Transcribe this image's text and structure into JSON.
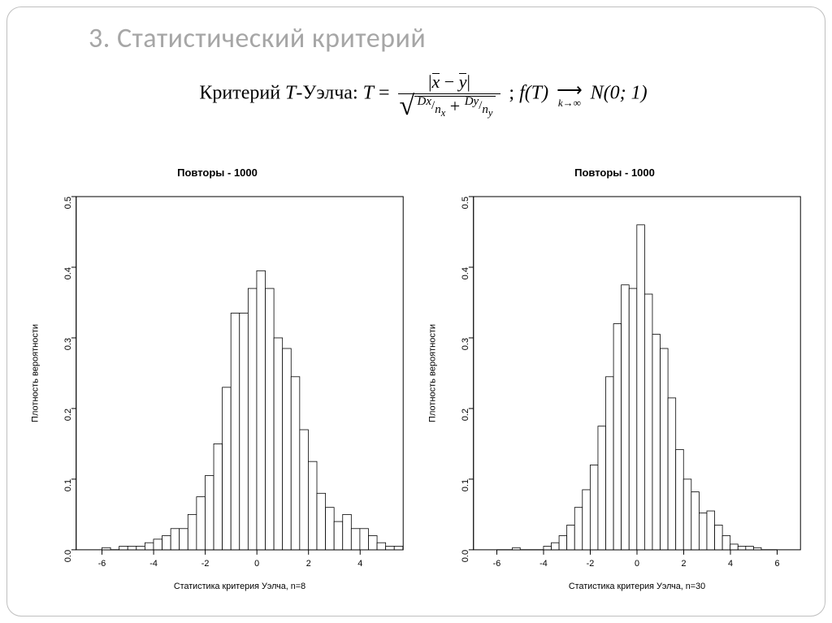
{
  "title": "3. Статистический критерий",
  "formula": {
    "label_prefix": "Критерий ",
    "label_tword": "T",
    "label_suffix": "-Уэлча: ",
    "lhs": "T",
    "num_abs_left": "x",
    "num_abs_right": "y",
    "den_dx": "Dx",
    "den_nx": "n",
    "den_nx_sub": "x",
    "den_dy": "Dy",
    "den_ny": "n",
    "den_ny_sub": "y",
    "f_of_t": "f(T)",
    "arrow_sub": "k→∞",
    "normal": "N(0; 1)"
  },
  "chart_common": {
    "type": "histogram",
    "title": "Повторы - 1000",
    "title_fontsize": 13,
    "title_fontweight": "bold",
    "ylabel": "Плотность вероятности",
    "label_fontsize": 11,
    "tick_fontsize": 11,
    "ylim": [
      0,
      0.5
    ],
    "ytick_step": 0.1,
    "yticks": [
      0.0,
      0.1,
      0.2,
      0.3,
      0.4,
      0.5
    ],
    "bar_fill": "#ffffff",
    "bar_stroke": "#000000",
    "axis_color": "#000000",
    "background_color": "#ffffff",
    "bin_width": 0.333
  },
  "chart_left": {
    "xlabel": "Статистика критерия Уэлча, n=8",
    "xlim": [
      -7,
      5.667
    ],
    "xticks": [
      -6,
      -4,
      -2,
      0,
      2,
      4
    ],
    "bin_start": -7,
    "values": [
      0,
      0,
      0,
      0.003,
      0,
      0.005,
      0.005,
      0.005,
      0.01,
      0.015,
      0.02,
      0.03,
      0.03,
      0.05,
      0.075,
      0.105,
      0.15,
      0.23,
      0.335,
      0.335,
      0.37,
      0.395,
      0.37,
      0.3,
      0.285,
      0.245,
      0.17,
      0.125,
      0.08,
      0.06,
      0.04,
      0.05,
      0.03,
      0.03,
      0.02,
      0.01,
      0.005,
      0.005
    ]
  },
  "chart_right": {
    "xlabel": "Статистика критерия Уэлча, n=30",
    "xlim": [
      -7,
      7
    ],
    "xticks": [
      -6,
      -4,
      -2,
      0,
      2,
      4,
      6
    ],
    "bin_start": -5.667,
    "values": [
      0,
      0.003,
      0,
      0,
      0,
      0.005,
      0.01,
      0.02,
      0.035,
      0.06,
      0.085,
      0.12,
      0.175,
      0.245,
      0.32,
      0.375,
      0.37,
      0.46,
      0.362,
      0.305,
      0.285,
      0.215,
      0.142,
      0.1,
      0.082,
      0.052,
      0.055,
      0.035,
      0.02,
      0.008,
      0.005,
      0.005,
      0.003,
      0
    ]
  }
}
